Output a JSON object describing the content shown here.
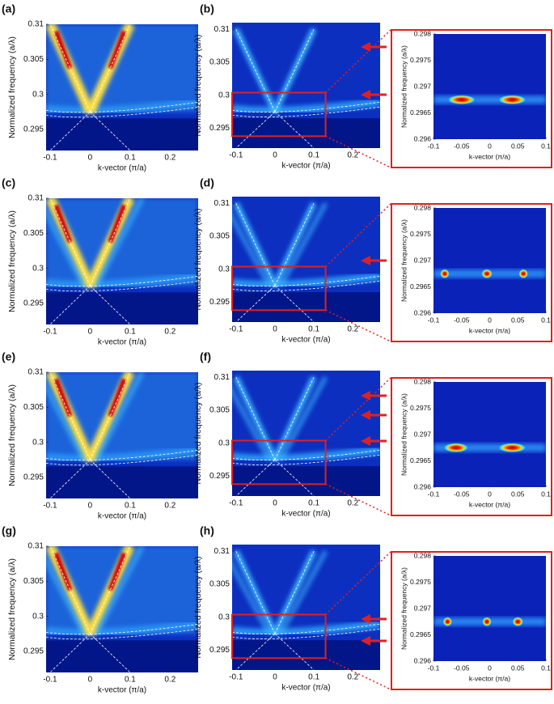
{
  "chart_data": [
    {
      "type": "heatmap",
      "title": "(a)",
      "xlabel": "k-vector (π/a)",
      "ylabel": "Normalized frequency (a/λ)",
      "xlim": [
        -0.11,
        0.27
      ],
      "ylim": [
        0.292,
        0.31
      ],
      "xticks": [
        -0.1,
        0,
        0.1,
        0.2
      ],
      "yticks": [
        0.295,
        0.3,
        0.305,
        0.31
      ]
    },
    {
      "type": "heatmap",
      "title": "(b)",
      "xlabel": "k-vector (π/a)",
      "ylabel": "Normalized frequency (a/λ)",
      "xlim": [
        -0.11,
        0.27
      ],
      "ylim": [
        0.292,
        0.311
      ],
      "xticks": [
        -0.1,
        0,
        0.1,
        0.2
      ],
      "yticks": [
        0.295,
        0.3,
        0.305,
        0.31
      ]
    },
    {
      "type": "heatmap",
      "xlabel": "k-vector (π/a)",
      "ylabel": "Normalized frequency (a/λ)",
      "xlim": [
        -0.1,
        0.1
      ],
      "ylim": [
        0.296,
        0.298
      ],
      "xticks": [
        -0.1,
        -0.05,
        0,
        0.05,
        0.1
      ],
      "yticks": [
        0.296,
        0.2965,
        0.297,
        0.2975,
        0.298
      ]
    },
    {
      "type": "heatmap",
      "title": "(c)",
      "xlabel": "k-vector (π/a)",
      "ylabel": "Normalized frequency (a/λ)",
      "xlim": [
        -0.11,
        0.27
      ],
      "ylim": [
        0.292,
        0.31
      ],
      "xticks": [
        -0.1,
        0,
        0.1,
        0.2
      ],
      "yticks": [
        0.295,
        0.3,
        0.305,
        0.31
      ]
    },
    {
      "type": "heatmap",
      "title": "(d)",
      "xlabel": "k-vector (π/a)",
      "ylabel": "Normalized frequency (a/λ)",
      "xlim": [
        -0.11,
        0.27
      ],
      "ylim": [
        0.292,
        0.311
      ],
      "xticks": [
        -0.1,
        0,
        0.1,
        0.2
      ],
      "yticks": [
        0.295,
        0.3,
        0.305,
        0.31
      ]
    },
    {
      "type": "heatmap",
      "xlabel": "k-vector (π/a)",
      "ylabel": "Normalized frequency (a/λ)",
      "xlim": [
        -0.1,
        0.1
      ],
      "ylim": [
        0.296,
        0.298
      ],
      "xticks": [
        -0.1,
        -0.05,
        0,
        0.05,
        0.1
      ],
      "yticks": [
        0.296,
        0.2965,
        0.297,
        0.2975,
        0.298
      ]
    },
    {
      "type": "heatmap",
      "title": "(e)",
      "xlabel": "k-vector (π/a)",
      "ylabel": "Normalized frequency (a/λ)",
      "xlim": [
        -0.11,
        0.27
      ],
      "ylim": [
        0.292,
        0.31
      ],
      "xticks": [
        -0.1,
        0,
        0.1,
        0.2
      ],
      "yticks": [
        0.295,
        0.3,
        0.305,
        0.31
      ]
    },
    {
      "type": "heatmap",
      "title": "(f)",
      "xlabel": "k-vector (π/a)",
      "ylabel": "Normalized frequency (a/λ)",
      "xlim": [
        -0.11,
        0.27
      ],
      "ylim": [
        0.292,
        0.311
      ],
      "xticks": [
        -0.1,
        0,
        0.1,
        0.2
      ],
      "yticks": [
        0.295,
        0.3,
        0.305,
        0.31
      ]
    },
    {
      "type": "heatmap",
      "xlabel": "k-vector (π/a)",
      "ylabel": "Normalized frequency (a/λ)",
      "xlim": [
        -0.1,
        0.1
      ],
      "ylim": [
        0.296,
        0.298
      ],
      "xticks": [
        -0.1,
        -0.05,
        0,
        0.05,
        0.1
      ],
      "yticks": [
        0.296,
        0.2965,
        0.297,
        0.2975,
        0.298
      ]
    },
    {
      "type": "heatmap",
      "title": "(g)",
      "xlabel": "k-vector (π/a)",
      "ylabel": "Normalized frequency (a/λ)",
      "xlim": [
        -0.11,
        0.27
      ],
      "ylim": [
        0.292,
        0.31
      ],
      "xticks": [
        -0.1,
        0,
        0.1,
        0.2
      ],
      "yticks": [
        0.295,
        0.3,
        0.305,
        0.31
      ]
    },
    {
      "type": "heatmap",
      "title": "(h)",
      "xlabel": "k-vector (π/a)",
      "ylabel": "Normalized frequency (a/λ)",
      "xlim": [
        -0.11,
        0.27
      ],
      "ylim": [
        0.292,
        0.311
      ],
      "xticks": [
        -0.1,
        0,
        0.1,
        0.2
      ],
      "yticks": [
        0.295,
        0.3,
        0.305,
        0.31
      ]
    },
    {
      "type": "heatmap",
      "xlabel": "k-vector (π/a)",
      "ylabel": "Normalized frequency (a/λ)",
      "xlim": [
        -0.1,
        0.1
      ],
      "ylim": [
        0.296,
        0.298
      ],
      "xticks": [
        -0.1,
        -0.05,
        0,
        0.05,
        0.1
      ],
      "yticks": [
        0.296,
        0.2965,
        0.297,
        0.2975,
        0.298
      ]
    }
  ]
}
